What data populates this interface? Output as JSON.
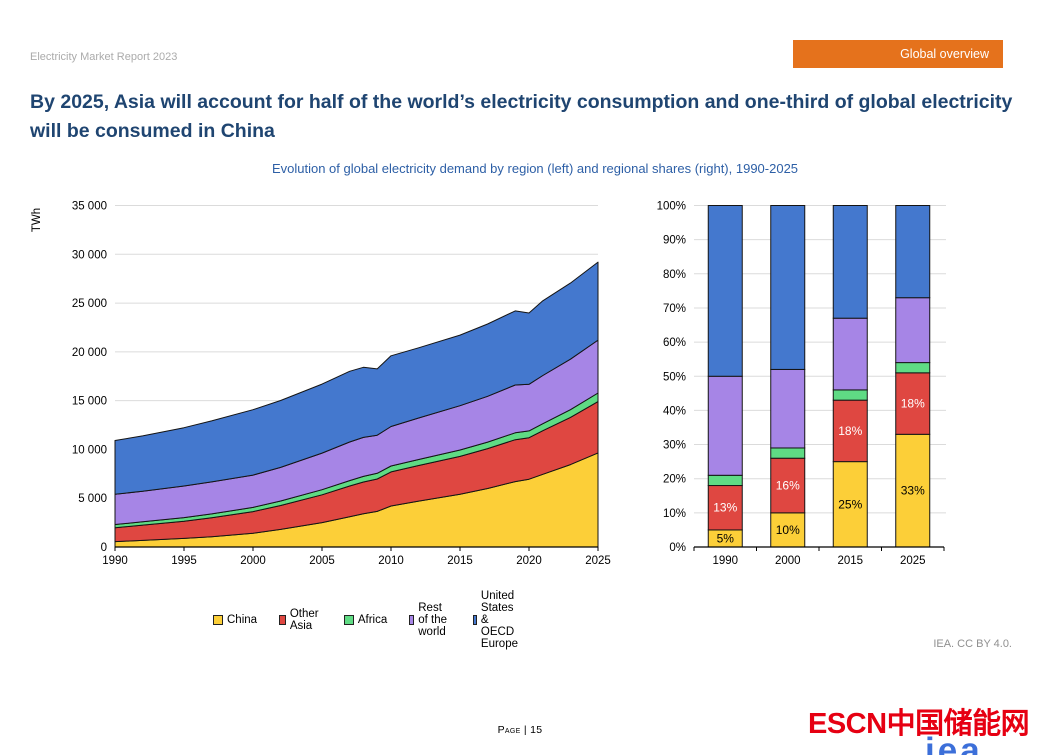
{
  "page": {
    "report_label": "Electricity Market Report 2023",
    "badge_label": "Global overview",
    "title": "By 2025, Asia will account for half of the world’s electricity consumption and one-third of global electricity will be consumed in China",
    "subtitle": "Evolution of global electricity demand by region (left) and regional shares (right), 1990-2025",
    "attribution": "IEA. CC BY 4.0.",
    "page_number": "Page | 15",
    "logo_escn": "ESCN中国储能网",
    "logo_iea": "iea"
  },
  "colors": {
    "china": "#FCCF38",
    "other_asia": "#DF4741",
    "africa": "#5FDB84",
    "rest_of_world": "#A685E6",
    "us_oecd": "#4478CE",
    "band_outline": "#141414",
    "gridline": "#DBDBDB",
    "axis": "#000000",
    "badge_bg": "#E5721C",
    "title_text": "#1F4571",
    "subtitle_text": "#2D5FA6",
    "report_label_text": "#ABABAB",
    "attribution_text": "#8F8F8F",
    "escn_red": "#E60012",
    "iea_blue": "#3C6FD9"
  },
  "legend": [
    {
      "label": "China",
      "color_key": "china"
    },
    {
      "label": "Other Asia",
      "color_key": "other_asia"
    },
    {
      "label": "Africa",
      "color_key": "africa"
    },
    {
      "label": "Rest of the world",
      "color_key": "rest_of_world"
    },
    {
      "label": "United States & OECD Europe",
      "color_key": "us_oecd"
    }
  ],
  "chart_data": [
    {
      "type": "area",
      "stacked": true,
      "ylabel": "TWh",
      "ylim": [
        0,
        35000
      ],
      "ytick_values": [
        0,
        5000,
        10000,
        15000,
        20000,
        25000,
        30000,
        35000
      ],
      "ytick_labels": [
        "0",
        "5 000",
        "10 000",
        "15 000",
        "20 000",
        "25 000",
        "30 000",
        "35 000"
      ],
      "xticks": [
        "1990",
        "1995",
        "2000",
        "2005",
        "2010",
        "2015",
        "2020",
        "2025"
      ],
      "x": [
        1990,
        1992,
        1995,
        1997,
        2000,
        2002,
        2005,
        2007,
        2008,
        2009,
        2010,
        2012,
        2015,
        2017,
        2019,
        2020,
        2021,
        2023,
        2025
      ],
      "series": [
        {
          "name": "China",
          "color_key": "china",
          "values": [
            550,
            680,
            880,
            1060,
            1400,
            1800,
            2500,
            3100,
            3400,
            3650,
            4200,
            4700,
            5400,
            6000,
            6700,
            6950,
            7450,
            8450,
            9640
          ]
        },
        {
          "name": "Other Asia",
          "color_key": "other_asia",
          "values": [
            1430,
            1560,
            1760,
            1940,
            2230,
            2450,
            2850,
            3150,
            3260,
            3320,
            3500,
            3650,
            3890,
            4080,
            4300,
            4250,
            4470,
            4830,
            5260
          ]
        },
        {
          "name": "Africa",
          "color_key": "africa",
          "values": [
            330,
            345,
            370,
            395,
            430,
            460,
            520,
            560,
            575,
            585,
            600,
            620,
            650,
            670,
            700,
            700,
            720,
            790,
            880
          ]
        },
        {
          "name": "Rest of the world",
          "color_key": "rest_of_world",
          "values": [
            3100,
            3120,
            3240,
            3280,
            3310,
            3450,
            3750,
            3950,
            4000,
            3900,
            4050,
            4250,
            4540,
            4700,
            4900,
            4780,
            4940,
            5180,
            5420
          ]
        },
        {
          "name": "United States & OECD Europe",
          "color_key": "us_oecd",
          "values": [
            5500,
            5680,
            5980,
            6250,
            6700,
            6850,
            7080,
            7250,
            7180,
            6800,
            7250,
            7200,
            7240,
            7400,
            7600,
            7300,
            7650,
            7800,
            8000
          ]
        }
      ]
    },
    {
      "type": "bar",
      "stacked": true,
      "percent": true,
      "ylim": [
        0,
        100
      ],
      "ytick_labels": [
        "0%",
        "10%",
        "20%",
        "30%",
        "40%",
        "50%",
        "60%",
        "70%",
        "80%",
        "90%",
        "100%"
      ],
      "categories": [
        "1990",
        "2000",
        "2015",
        "2025"
      ],
      "series": [
        {
          "name": "China",
          "color_key": "china",
          "values": [
            5,
            10,
            25,
            33
          ],
          "labels": [
            "5%",
            "10%",
            "25%",
            "33%"
          ],
          "label_color": "#000000"
        },
        {
          "name": "Other Asia",
          "color_key": "other_asia",
          "values": [
            13,
            16,
            18,
            18
          ],
          "labels": [
            "13%",
            "16%",
            "18%",
            "18%"
          ],
          "label_color": "#FFFFFF"
        },
        {
          "name": "Africa",
          "color_key": "africa",
          "values": [
            3,
            3,
            3,
            3
          ]
        },
        {
          "name": "Rest of the world",
          "color_key": "rest_of_world",
          "values": [
            29,
            23,
            21,
            19
          ]
        },
        {
          "name": "United States & OECD Europe",
          "color_key": "us_oecd",
          "values": [
            50,
            48,
            33,
            27
          ]
        }
      ]
    }
  ]
}
